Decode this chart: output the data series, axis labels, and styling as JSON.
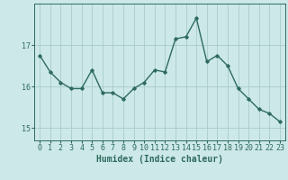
{
  "x": [
    0,
    1,
    2,
    3,
    4,
    5,
    6,
    7,
    8,
    9,
    10,
    11,
    12,
    13,
    14,
    15,
    16,
    17,
    18,
    19,
    20,
    21,
    22,
    23
  ],
  "y": [
    16.75,
    16.35,
    16.1,
    15.95,
    15.95,
    16.4,
    15.85,
    15.85,
    15.7,
    15.95,
    16.1,
    16.4,
    16.35,
    17.15,
    17.2,
    17.65,
    16.6,
    16.75,
    16.5,
    15.95,
    15.7,
    15.45,
    15.35,
    15.15
  ],
  "line_color": "#2e6b5e",
  "marker": "D",
  "marker_size": 1.8,
  "line_width": 1.0,
  "bg_color": "#cce8e8",
  "grid_color": "#aacccc",
  "xlabel": "Humidex (Indice chaleur)",
  "yticks": [
    15,
    16,
    17
  ],
  "ylim": [
    14.7,
    18.0
  ],
  "xlim": [
    -0.5,
    23.5
  ],
  "xticks": [
    0,
    1,
    2,
    3,
    4,
    5,
    6,
    7,
    8,
    9,
    10,
    11,
    12,
    13,
    14,
    15,
    16,
    17,
    18,
    19,
    20,
    21,
    22,
    23
  ],
  "tick_color": "#2e6b5e",
  "label_color": "#2e6b5e",
  "xlabel_fontsize": 7,
  "tick_fontsize": 6
}
